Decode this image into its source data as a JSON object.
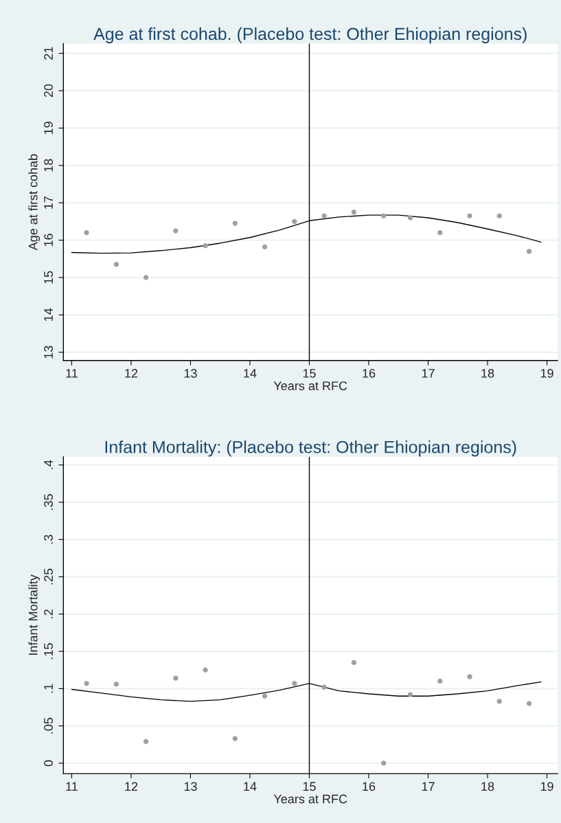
{
  "chart_data": [
    {
      "type": "scatter",
      "title": "Age at first cohab. (Placebo test: Other Ehiopian regions)",
      "xlabel": "Years at RFC",
      "ylabel": "Age at first cohab",
      "xlim": [
        10.86,
        19.18
      ],
      "xticks": [
        11,
        12,
        13,
        14,
        15,
        16,
        17,
        18,
        19
      ],
      "ylim": [
        12.78,
        21.26
      ],
      "yticks": [
        13,
        14,
        15,
        16,
        17,
        18,
        19,
        20,
        21
      ],
      "grid": "y",
      "ref_lines": [
        {
          "axis": "x",
          "value": 15,
          "color": "#000000"
        }
      ],
      "series": [
        {
          "color": "#a0a0a0",
          "marker": "circle",
          "x": [
            11.25,
            11.75,
            12.25,
            12.75,
            13.25,
            13.75,
            14.25,
            14.75,
            15.25,
            15.75,
            16.25,
            16.7,
            17.2,
            17.7,
            18.2,
            18.7
          ],
          "values": [
            16.2,
            15.35,
            15.0,
            16.25,
            15.85,
            16.45,
            15.82,
            16.5,
            16.65,
            16.75,
            16.65,
            16.6,
            16.2,
            16.65,
            16.65,
            15.7
          ]
        },
        {
          "type": "line",
          "color": "#000000",
          "x": [
            11,
            11.5,
            12,
            12.5,
            13,
            13.5,
            14,
            14.5,
            15,
            15.5,
            16,
            16.5,
            17,
            17.5,
            18,
            18.5,
            18.9
          ],
          "values": [
            15.67,
            15.65,
            15.66,
            15.72,
            15.8,
            15.92,
            16.07,
            16.27,
            16.52,
            16.62,
            16.67,
            16.67,
            16.6,
            16.47,
            16.3,
            16.12,
            15.95
          ]
        }
      ]
    },
    {
      "type": "scatter",
      "title": "Infant Mortality: (Placebo test: Other Ehiopian regions)",
      "xlabel": "Years at RFC",
      "ylabel": "Infant Mortality",
      "xlim": [
        10.86,
        19.18
      ],
      "xticks": [
        11,
        12,
        13,
        14,
        15,
        16,
        17,
        18,
        19
      ],
      "ylim": [
        -0.014,
        0.411
      ],
      "yticks": [
        {
          "value": 0,
          "label": "0"
        },
        {
          "value": 0.05,
          "label": ".05"
        },
        {
          "value": 0.1,
          "label": ".1"
        },
        {
          "value": 0.15,
          "label": ".15"
        },
        {
          "value": 0.2,
          "label": ".2"
        },
        {
          "value": 0.25,
          "label": ".25"
        },
        {
          "value": 0.3,
          "label": ".3"
        },
        {
          "value": 0.35,
          "label": ".35"
        },
        {
          "value": 0.4,
          "label": ".4"
        }
      ],
      "grid": "y",
      "ref_lines": [
        {
          "axis": "x",
          "value": 15,
          "color": "#000000"
        }
      ],
      "series": [
        {
          "color": "#a0a0a0",
          "marker": "circle",
          "x": [
            11.25,
            11.75,
            12.25,
            12.75,
            13.25,
            13.75,
            14.25,
            14.75,
            15.25,
            15.75,
            16.25,
            16.7,
            17.2,
            17.7,
            18.2,
            18.7
          ],
          "values": [
            0.107,
            0.106,
            0.029,
            0.114,
            0.125,
            0.033,
            0.09,
            0.107,
            0.102,
            0.135,
            0.0,
            0.092,
            0.11,
            0.116,
            0.083,
            0.08
          ]
        },
        {
          "type": "line",
          "color": "#000000",
          "x": [
            11,
            11.5,
            12,
            12.5,
            13,
            13.5,
            14,
            14.5,
            15,
            15.5,
            16,
            16.5,
            17,
            17.5,
            18,
            18.5,
            18.9
          ],
          "values": [
            0.099,
            0.094,
            0.089,
            0.085,
            0.083,
            0.085,
            0.091,
            0.098,
            0.107,
            0.097,
            0.093,
            0.09,
            0.09,
            0.093,
            0.097,
            0.104,
            0.109
          ]
        }
      ]
    }
  ]
}
